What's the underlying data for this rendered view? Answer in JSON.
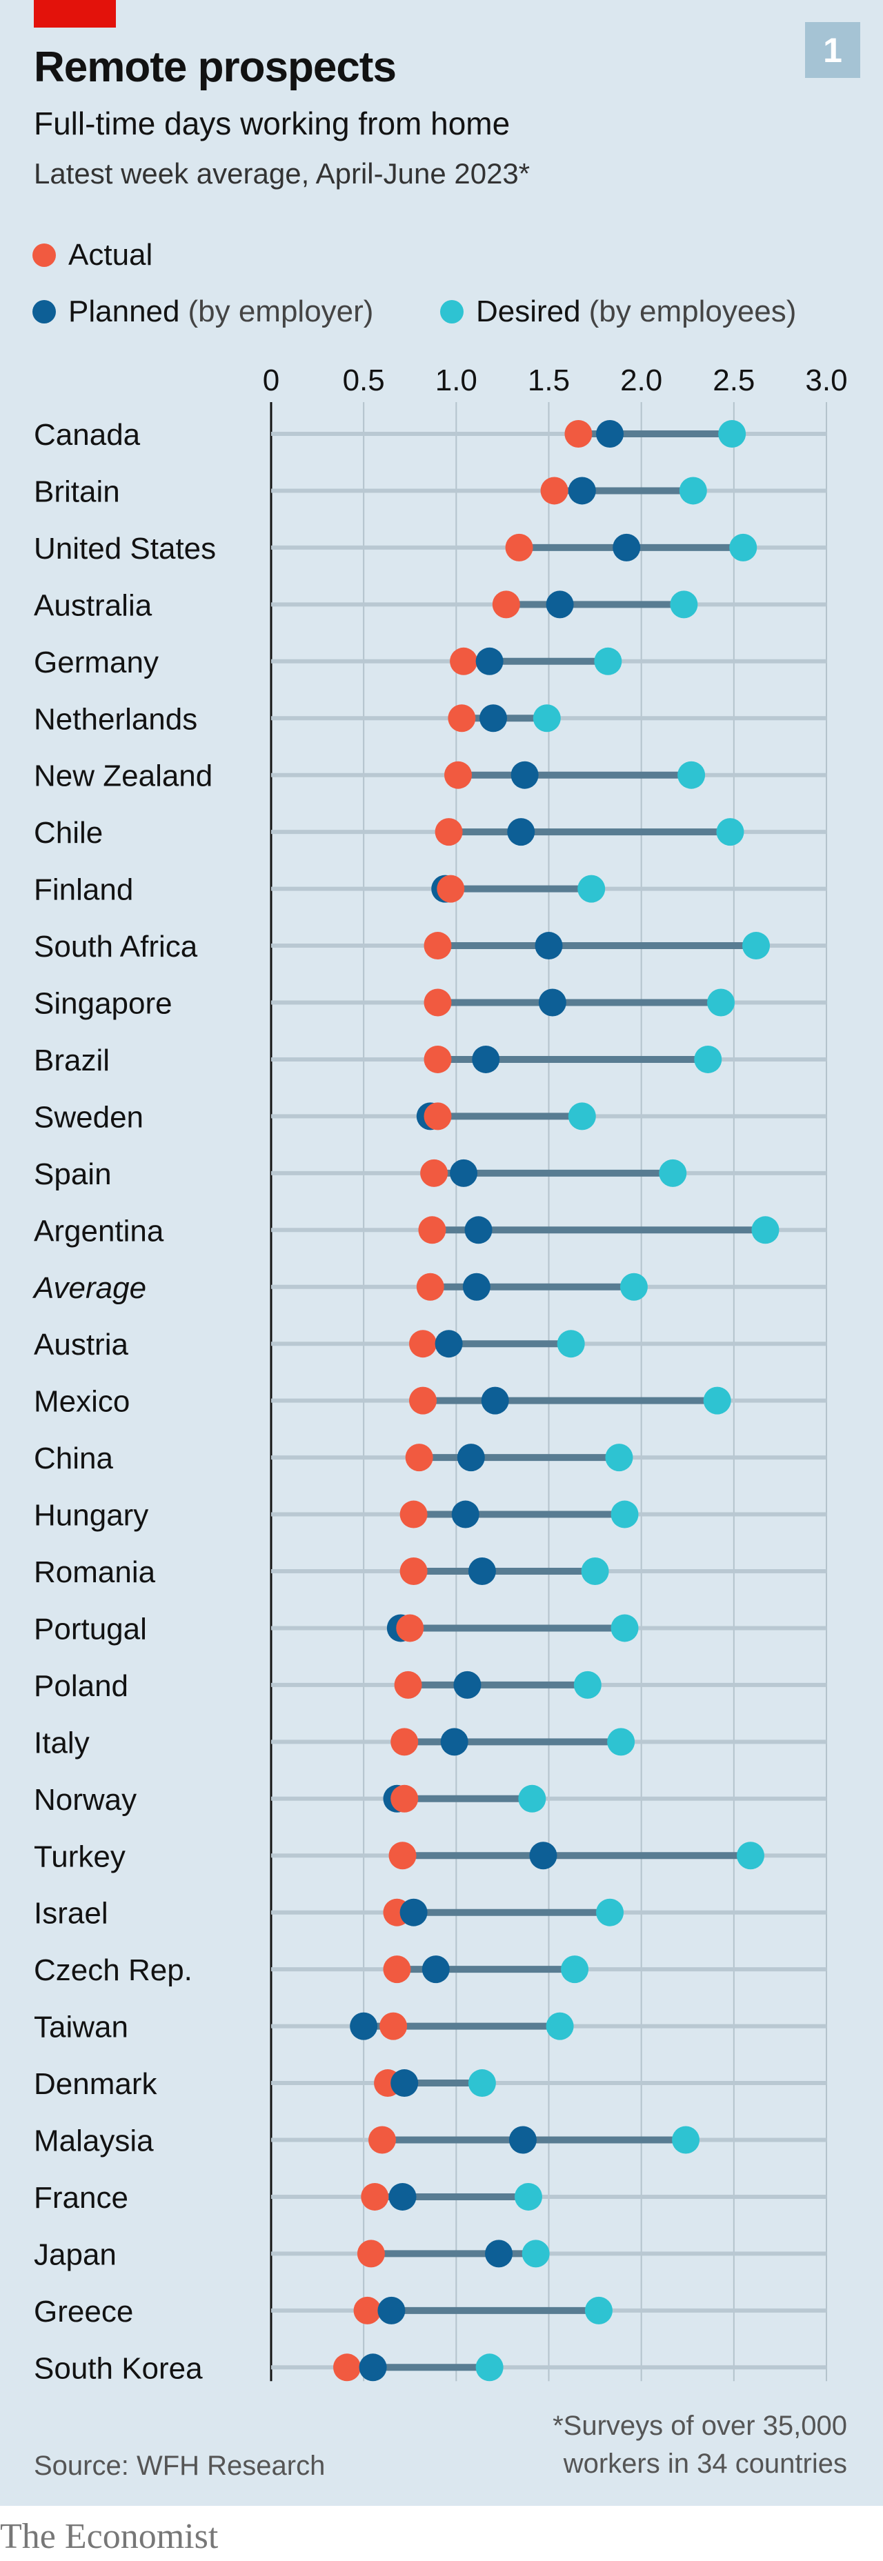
{
  "header": {
    "chart_number": "1"
  },
  "colors": {
    "actual": "#f15a40",
    "planned": "#0d5f96",
    "desired": "#2ec3d2",
    "range_line": "#587c92",
    "base_line": "#b9c8d2",
    "grid": "#b4c3cc"
  },
  "legend": {
    "actual": {
      "label": "Actual"
    },
    "planned": {
      "label": "Planned",
      "note": "(by employer)"
    },
    "desired": {
      "label": "Desired",
      "note": "(by employees)"
    }
  },
  "footer": {
    "source": "Source: WFH Research",
    "note_line1": "*Surveys of over 35,000",
    "note_line2": "workers in 34 countries",
    "brand": "The Economist"
  },
  "chart_data": {
    "type": "dot-range",
    "title": "Remote prospects",
    "subtitle": "Full-time days working from home",
    "subsubtitle": "Latest week average, April-June 2023*",
    "xlim": [
      0,
      3
    ],
    "xticks": [
      "0",
      "0.5",
      "1.0",
      "1.5",
      "2.0",
      "2.5",
      "3.0"
    ],
    "xtick_values": [
      0,
      0.5,
      1,
      1.5,
      2,
      2.5,
      3
    ],
    "grid": true,
    "legend_position": "top-left",
    "series_names": [
      "Actual",
      "Planned",
      "Desired"
    ],
    "rows": [
      {
        "label": "Canada",
        "actual": 1.66,
        "planned": 1.83,
        "desired": 2.49
      },
      {
        "label": "Britain",
        "actual": 1.53,
        "planned": 1.68,
        "desired": 2.28
      },
      {
        "label": "United States",
        "actual": 1.34,
        "planned": 1.92,
        "desired": 2.55
      },
      {
        "label": "Australia",
        "actual": 1.27,
        "planned": 1.56,
        "desired": 2.23
      },
      {
        "label": "Germany",
        "actual": 1.04,
        "planned": 1.18,
        "desired": 1.82
      },
      {
        "label": "Netherlands",
        "actual": 1.03,
        "planned": 1.2,
        "desired": 1.49
      },
      {
        "label": "New Zealand",
        "actual": 1.01,
        "planned": 1.37,
        "desired": 2.27
      },
      {
        "label": "Chile",
        "actual": 0.96,
        "planned": 1.35,
        "desired": 2.48
      },
      {
        "label": "Finland",
        "actual": 0.97,
        "planned": 0.94,
        "desired": 1.73
      },
      {
        "label": "South Africa",
        "actual": 0.9,
        "planned": 1.5,
        "desired": 2.62
      },
      {
        "label": "Singapore",
        "actual": 0.9,
        "planned": 1.52,
        "desired": 2.43
      },
      {
        "label": "Brazil",
        "actual": 0.9,
        "planned": 1.16,
        "desired": 2.36
      },
      {
        "label": "Sweden",
        "actual": 0.9,
        "planned": 0.86,
        "desired": 1.68
      },
      {
        "label": "Spain",
        "actual": 0.88,
        "planned": 1.04,
        "desired": 2.17
      },
      {
        "label": "Argentina",
        "actual": 0.87,
        "planned": 1.12,
        "desired": 2.67
      },
      {
        "label": "Average",
        "actual": 0.86,
        "planned": 1.11,
        "desired": 1.96,
        "italic": true
      },
      {
        "label": "Austria",
        "actual": 0.82,
        "planned": 0.96,
        "desired": 1.62
      },
      {
        "label": "Mexico",
        "actual": 0.82,
        "planned": 1.21,
        "desired": 2.41
      },
      {
        "label": "China",
        "actual": 0.8,
        "planned": 1.08,
        "desired": 1.88
      },
      {
        "label": "Hungary",
        "actual": 0.77,
        "planned": 1.05,
        "desired": 1.91
      },
      {
        "label": "Romania",
        "actual": 0.77,
        "planned": 1.14,
        "desired": 1.75
      },
      {
        "label": "Portugal",
        "actual": 0.75,
        "planned": 0.7,
        "desired": 1.91
      },
      {
        "label": "Poland",
        "actual": 0.74,
        "planned": 1.06,
        "desired": 1.71
      },
      {
        "label": "Italy",
        "actual": 0.72,
        "planned": 0.99,
        "desired": 1.89
      },
      {
        "label": "Norway",
        "actual": 0.72,
        "planned": 0.68,
        "desired": 1.41
      },
      {
        "label": "Turkey",
        "actual": 0.71,
        "planned": 1.47,
        "desired": 2.59
      },
      {
        "label": "Israel",
        "actual": 0.68,
        "planned": 0.77,
        "desired": 1.83
      },
      {
        "label": "Czech Rep.",
        "actual": 0.68,
        "planned": 0.89,
        "desired": 1.64
      },
      {
        "label": "Taiwan",
        "actual": 0.66,
        "planned": 0.5,
        "desired": 1.56
      },
      {
        "label": "Denmark",
        "actual": 0.63,
        "planned": 0.72,
        "desired": 1.14
      },
      {
        "label": "Malaysia",
        "actual": 0.6,
        "planned": 1.36,
        "desired": 2.24
      },
      {
        "label": "France",
        "actual": 0.56,
        "planned": 0.71,
        "desired": 1.39
      },
      {
        "label": "Japan",
        "actual": 0.54,
        "planned": 1.23,
        "desired": 1.43
      },
      {
        "label": "Greece",
        "actual": 0.52,
        "planned": 0.65,
        "desired": 1.77
      },
      {
        "label": "South Korea",
        "actual": 0.41,
        "planned": 0.55,
        "desired": 1.18
      }
    ]
  }
}
